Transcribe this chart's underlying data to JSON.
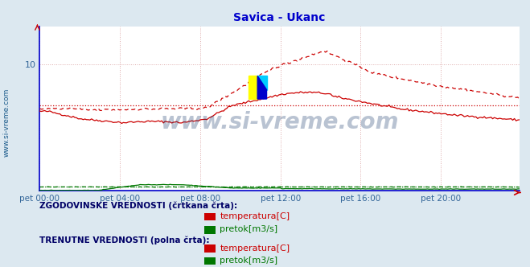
{
  "title": "Savica - Ukanc",
  "title_color": "#0000cc",
  "title_fontsize": 10,
  "bg_color": "#dce8f0",
  "plot_bg_color": "#ffffff",
  "grid_color": "#ddaaaa",
  "grid_color_v": "#ddaaaa",
  "axis_color": "#0000cc",
  "watermark_text": "www.si-vreme.com",
  "watermark_color": "#1a3a6a",
  "watermark_alpha": 0.3,
  "watermark_fontsize": 20,
  "xtick_labels": [
    "pet 00:00",
    "pet 04:00",
    "pet 08:00",
    "pet 12:00",
    "pet 16:00",
    "pet 20:00"
  ],
  "xtick_positions": [
    0,
    48,
    96,
    144,
    192,
    240
  ],
  "ytick_positions_left": [
    10
  ],
  "ylim_left": [
    0,
    13
  ],
  "total_points": 288,
  "temp_current_color": "#cc0000",
  "temp_hist_color": "#cc0000",
  "flow_current_color": "#007700",
  "flow_hist_color": "#007700",
  "hist_avg_temp": 6.8,
  "hist_avg_flow_scaled": 0.45,
  "legend_hist_label_temp": "temperatura[C]",
  "legend_hist_label_flow": "pretok[m3/s]",
  "legend_curr_label_temp": "temperatura[C]",
  "legend_curr_label_flow": "pretok[m3/s]",
  "legend_hist_title": "ZGODOVINSKE VREDNOSTI (črtkana črta):",
  "legend_curr_title": "TRENUTNE VREDNOSTI (polna črta):",
  "sidebar_text": "www.si-vreme.com",
  "sidebar_color": "#1a5a8a",
  "logo_yellow": "#ffff00",
  "logo_cyan": "#00ccff",
  "logo_blue": "#0000cc"
}
